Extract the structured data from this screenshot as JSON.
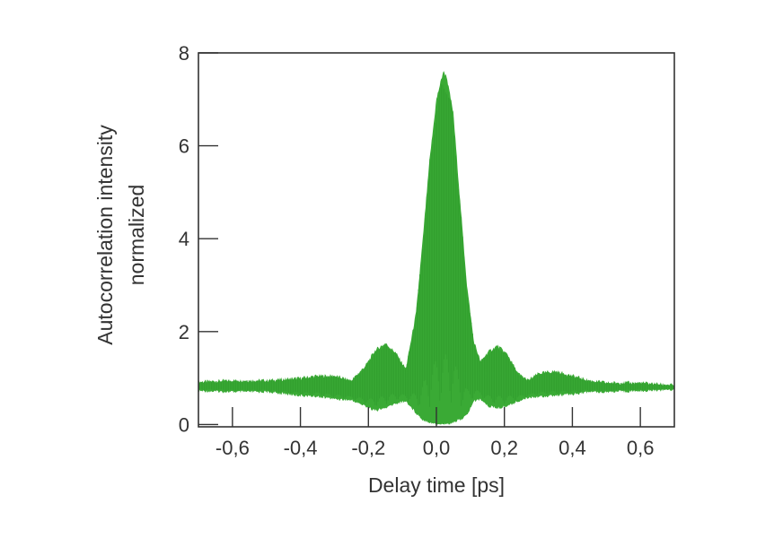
{
  "chart_data": {
    "type": "area",
    "title": "",
    "xlabel": "Delay time [ps]",
    "ylabel": [
      "Autocorrelation intensity",
      "normalized"
    ],
    "xlim": [
      -0.7,
      0.7
    ],
    "ylim": [
      -0.05,
      8.0
    ],
    "x_ticks": [
      -0.6,
      -0.4,
      -0.2,
      0.0,
      0.2,
      0.4,
      0.6
    ],
    "x_tick_labels": [
      "-0,6",
      "-0,4",
      "-0,2",
      "0,0",
      "0,2",
      "0,4",
      "0,6"
    ],
    "y_ticks": [
      0,
      2,
      4,
      6,
      8
    ],
    "y_tick_labels": [
      "0",
      "2",
      "4",
      "6",
      "8"
    ],
    "grid": false,
    "legend": "none",
    "series": [
      {
        "color": "#3aaa35",
        "x": [
          -0.7,
          -0.6,
          -0.5,
          -0.4,
          -0.35,
          -0.3,
          -0.25,
          -0.21,
          -0.18,
          -0.15,
          -0.12,
          -0.09,
          -0.06,
          -0.04,
          -0.02,
          0.0,
          0.02,
          0.03,
          0.05,
          0.07,
          0.09,
          0.11,
          0.13,
          0.15,
          0.18,
          0.21,
          0.24,
          0.27,
          0.3,
          0.35,
          0.4,
          0.45,
          0.5,
          0.6,
          0.7
        ],
        "upper": [
          0.92,
          0.95,
          0.95,
          1.0,
          1.05,
          1.05,
          0.95,
          1.25,
          1.6,
          1.75,
          1.55,
          1.2,
          2.4,
          4.0,
          5.7,
          7.0,
          7.6,
          7.5,
          6.7,
          4.8,
          3.0,
          1.8,
          1.35,
          1.55,
          1.7,
          1.5,
          1.1,
          0.95,
          1.1,
          1.15,
          1.05,
          0.95,
          0.9,
          0.9,
          0.85
        ],
        "lower": [
          0.72,
          0.7,
          0.7,
          0.62,
          0.6,
          0.55,
          0.52,
          0.4,
          0.3,
          0.35,
          0.45,
          0.5,
          0.25,
          0.1,
          0.05,
          0.0,
          0.0,
          0.0,
          0.05,
          0.1,
          0.2,
          0.5,
          0.55,
          0.4,
          0.35,
          0.4,
          0.5,
          0.58,
          0.6,
          0.62,
          0.65,
          0.7,
          0.7,
          0.72,
          0.75
        ]
      }
    ]
  }
}
